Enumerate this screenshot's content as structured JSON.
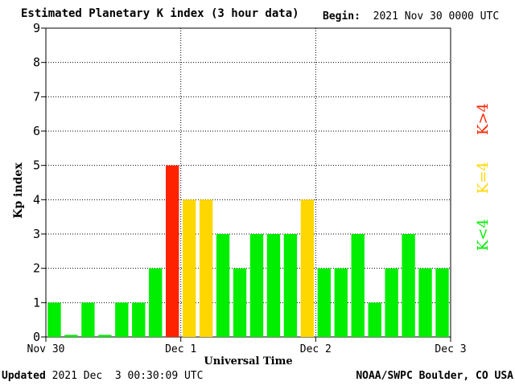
{
  "header": {
    "title": "Estimated Planetary K index (3 hour data)",
    "begin_label": "Begin:",
    "begin_value": "2021 Nov 30 0000 UTC"
  },
  "footer": {
    "updated_label": "Updated",
    "updated_value": "2021 Dec  3 00:30:09 UTC",
    "credit": "NOAA/SWPC Boulder, CO USA"
  },
  "legend": {
    "low": {
      "label": "K<4",
      "color": "#00ee00"
    },
    "mid": {
      "label": "K=4",
      "color": "#ffd700"
    },
    "high": {
      "label": "K>4",
      "color": "#ff2200"
    }
  },
  "chart_data": {
    "type": "bar",
    "title": "Estimated Planetary K index (3 hour data)",
    "xlabel": "Universal Time",
    "ylabel": "Kp index",
    "ylim": [
      0,
      9
    ],
    "yticks": [
      0,
      1,
      2,
      3,
      4,
      5,
      6,
      7,
      8,
      9
    ],
    "xticks": [
      "Nov 30",
      "Dec 1",
      "Dec 2",
      "Dec 3"
    ],
    "grid": true,
    "categories": [
      "Nov 30 00",
      "Nov 30 03",
      "Nov 30 06",
      "Nov 30 09",
      "Nov 30 12",
      "Nov 30 15",
      "Nov 30 18",
      "Nov 30 21",
      "Dec 1 00",
      "Dec 1 03",
      "Dec 1 06",
      "Dec 1 09",
      "Dec 1 12",
      "Dec 1 15",
      "Dec 1 18",
      "Dec 1 21",
      "Dec 2 00",
      "Dec 2 03",
      "Dec 2 06",
      "Dec 2 09",
      "Dec 2 12",
      "Dec 2 15",
      "Dec 2 18",
      "Dec 2 21"
    ],
    "values": [
      1,
      0,
      1,
      0,
      1,
      1,
      2,
      5,
      4,
      4,
      3,
      2,
      3,
      3,
      3,
      4,
      2,
      2,
      3,
      1,
      2,
      3,
      2,
      2
    ],
    "colors": {
      "low": "#00ee00",
      "mid": "#ffd700",
      "high": "#ff2200"
    }
  }
}
